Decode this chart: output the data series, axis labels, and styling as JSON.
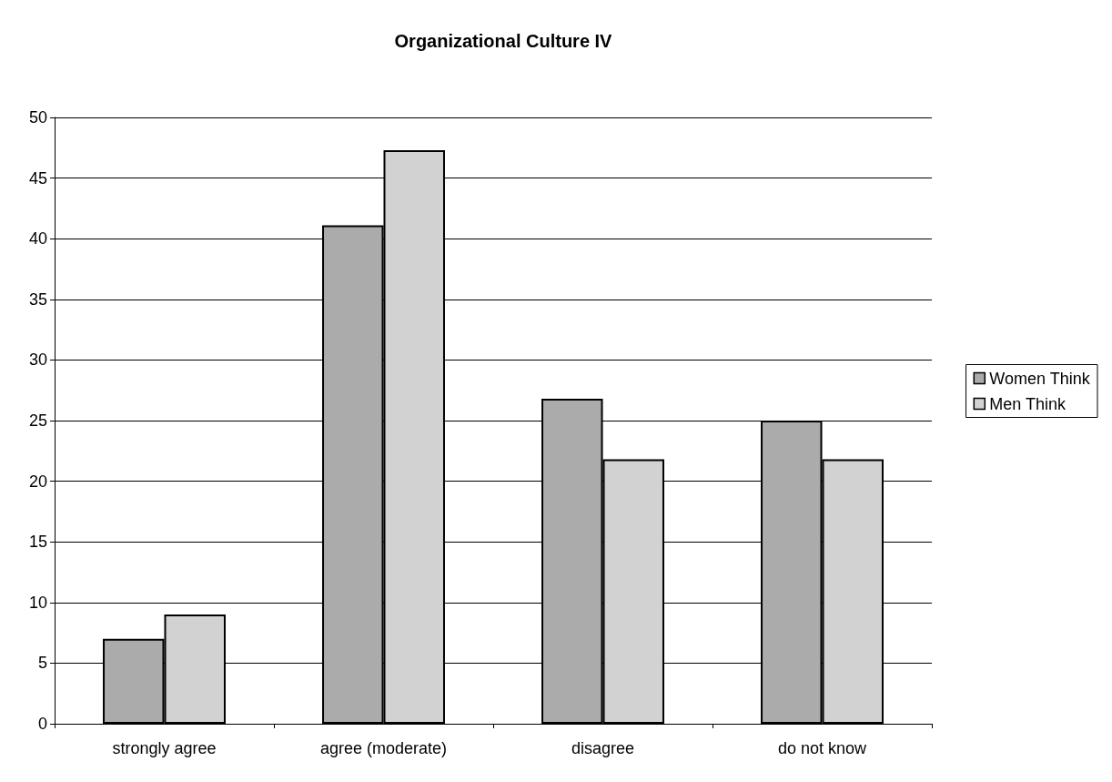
{
  "chart_data": {
    "type": "bar",
    "title": "Organizational Culture IV",
    "categories": [
      "strongly agree",
      "agree (moderate)",
      "disagree",
      "do not know"
    ],
    "series": [
      {
        "name": "Women Think",
        "color": "#ababab",
        "values": [
          7,
          41.1,
          26.8,
          25
        ]
      },
      {
        "name": "Men Think",
        "color": "#d2d2d2",
        "values": [
          9,
          47.3,
          21.8,
          21.8
        ]
      }
    ],
    "ylim": [
      0,
      50
    ],
    "yticks": [
      0,
      5,
      10,
      15,
      20,
      25,
      30,
      35,
      40,
      45,
      50
    ],
    "grid": "y",
    "legend": "right"
  }
}
